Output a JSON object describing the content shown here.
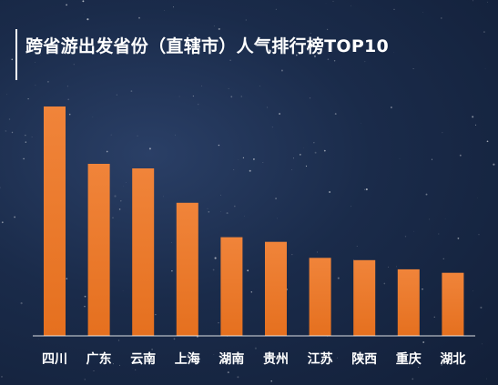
{
  "chart_data": {
    "type": "bar",
    "title": "跨省游出发省份（直辖市）人气排行榜TOP10",
    "categories": [
      "四川",
      "广东",
      "云南",
      "上海",
      "湖南",
      "贵州",
      "江苏",
      "陕西",
      "重庆",
      "湖北"
    ],
    "values": [
      100,
      75,
      73,
      58,
      43,
      41,
      34,
      33,
      29,
      27.5
    ],
    "ylim": [
      0,
      100
    ],
    "yaxis_visible": false,
    "grid": false,
    "legend": "none",
    "bar_color_top": "#f0843a",
    "bar_color_bottom": "#e5701f",
    "background_color": "#1a2b4a"
  }
}
